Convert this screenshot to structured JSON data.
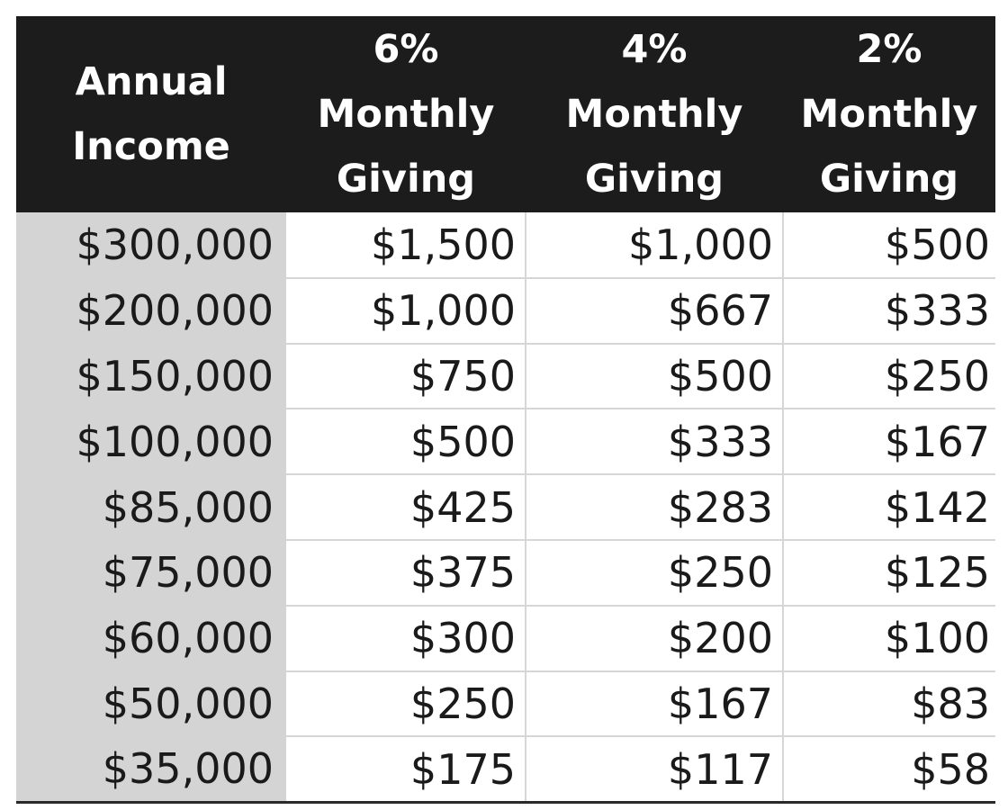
{
  "table": {
    "headers": [
      {
        "lines": [
          "Annual",
          "Income"
        ]
      },
      {
        "lines": [
          "6%",
          "Monthly",
          "Giving"
        ]
      },
      {
        "lines": [
          "4%",
          "Monthly",
          "Giving"
        ]
      },
      {
        "lines": [
          "2%",
          "Monthly",
          "Giving"
        ]
      }
    ],
    "rows": [
      [
        "$300,000",
        "$1,500",
        "$1,000",
        "$500"
      ],
      [
        "$200,000",
        "$1,000",
        "$667",
        "$333"
      ],
      [
        "$150,000",
        "$750",
        "$500",
        "$250"
      ],
      [
        "$100,000",
        "$500",
        "$333",
        "$167"
      ],
      [
        "$85,000",
        "$425",
        "$283",
        "$142"
      ],
      [
        "$75,000",
        "$375",
        "$250",
        "$125"
      ],
      [
        "$60,000",
        "$300",
        "$200",
        "$100"
      ],
      [
        "$50,000",
        "$250",
        "$167",
        "$83"
      ],
      [
        "$35,000",
        "$175",
        "$117",
        "$58"
      ]
    ]
  },
  "colors": {
    "header_bg": "#1c1c1c",
    "header_text": "#ffffff",
    "income_column_bg": "#d4d4d4",
    "grid_line": "#d6d6d6"
  }
}
